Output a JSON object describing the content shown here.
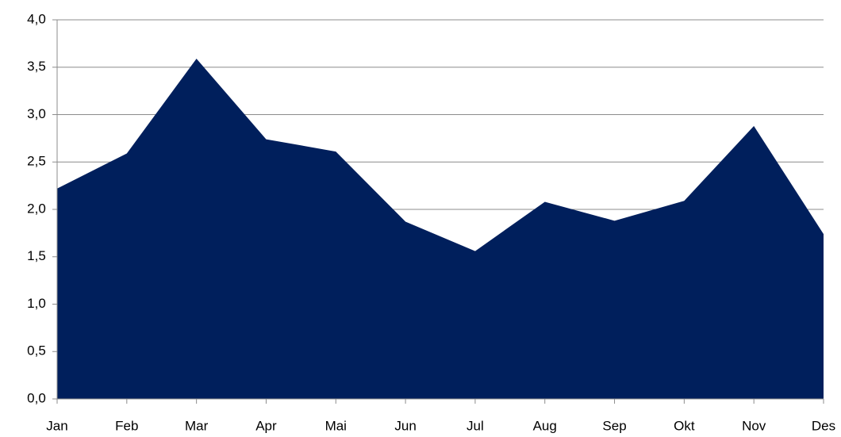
{
  "chart_data": {
    "type": "area",
    "categories": [
      "Jan",
      "Feb",
      "Mar",
      "Apr",
      "Mai",
      "Jun",
      "Jul",
      "Aug",
      "Sep",
      "Okt",
      "Nov",
      "Des"
    ],
    "values": [
      2.22,
      2.59,
      3.59,
      2.74,
      2.61,
      1.87,
      1.56,
      2.08,
      1.88,
      2.09,
      2.88,
      1.74
    ],
    "color": "#001f5c",
    "ylim": [
      0,
      4
    ],
    "yticks": [
      {
        "value": 0,
        "label": "0,0"
      },
      {
        "value": 0.5,
        "label": "0,5"
      },
      {
        "value": 1,
        "label": "1,0"
      },
      {
        "value": 1.5,
        "label": "1,5"
      },
      {
        "value": 2,
        "label": "2,0"
      },
      {
        "value": 2.5,
        "label": "2,5"
      },
      {
        "value": 3,
        "label": "3,0"
      },
      {
        "value": 3.5,
        "label": "3,5"
      },
      {
        "value": 4,
        "label": "4,0"
      }
    ],
    "grid": true
  }
}
